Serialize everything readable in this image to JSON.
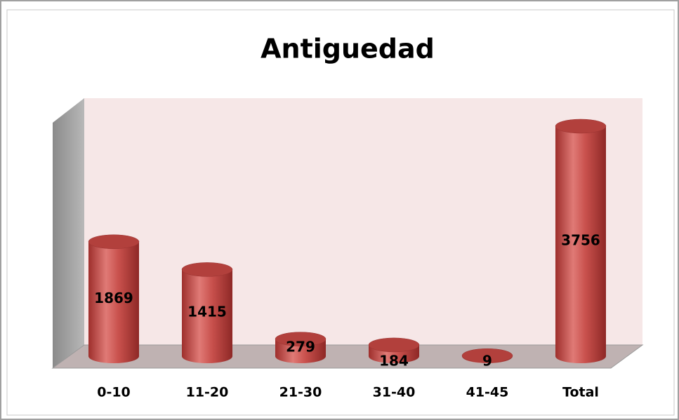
{
  "chart_data": {
    "type": "bar3d",
    "title": "Antiguedad",
    "categories": [
      "0-10",
      "11-20",
      "21-30",
      "31-40",
      "41-45",
      "Total"
    ],
    "values": [
      1869,
      1415,
      279,
      184,
      9,
      3756
    ],
    "color": "#c0504d"
  }
}
